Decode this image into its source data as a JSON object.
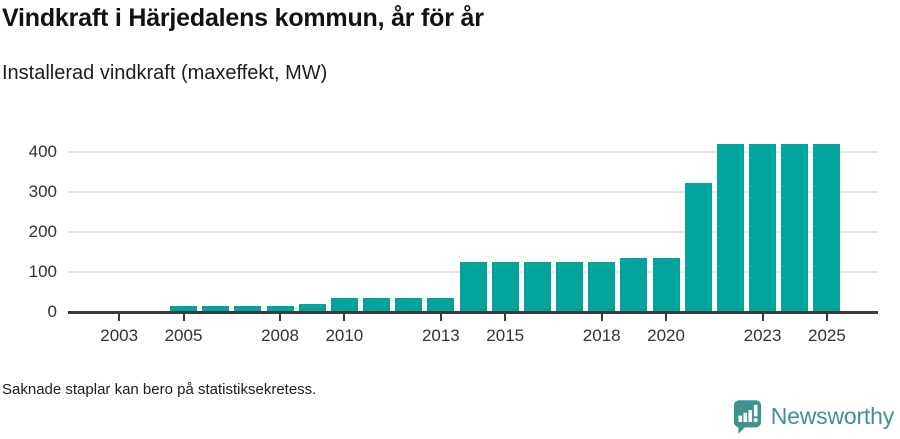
{
  "footnote": "Saknade staplar kan bero på statistiksekretess.",
  "brand": {
    "name": "Newsworthy",
    "icon": "newsworthy-speech-bubble-chart-icon",
    "text_color": "#3e938b",
    "icon_color": "#3e948c"
  },
  "colors": {
    "bar": "#00a49c",
    "gridline": "#e4e4e4",
    "axis": "#3b3b3b",
    "tick_text": "#333333",
    "title_text": "#121212"
  },
  "chart_data": {
    "type": "bar",
    "title": "Vindkraft i Härjedalens kommun, år för år",
    "subtitle": "Installerad vindkraft (maxeffekt, MW)",
    "unit": "MW",
    "x": [
      2002,
      2003,
      2004,
      2005,
      2006,
      2007,
      2008,
      2009,
      2010,
      2011,
      2012,
      2013,
      2014,
      2015,
      2016,
      2017,
      2018,
      2019,
      2020,
      2021,
      2022,
      2023,
      2024,
      2025
    ],
    "values": [
      null,
      null,
      null,
      15,
      15,
      15,
      15,
      21,
      35,
      35,
      35,
      35,
      125,
      125,
      125,
      125,
      125,
      134,
      134,
      322,
      420,
      420,
      420,
      420
    ],
    "x_ticks": [
      "2003",
      "2005",
      "2008",
      "2010",
      "2013",
      "2015",
      "2018",
      "2020",
      "2023",
      "2025"
    ],
    "y_ticks": [
      0,
      100,
      200,
      300,
      400
    ],
    "ylim": [
      0,
      440
    ],
    "grid": "horizontal",
    "legend": false,
    "missing_bars_note": "Saknade staplar kan bero på statistiksekretess."
  }
}
